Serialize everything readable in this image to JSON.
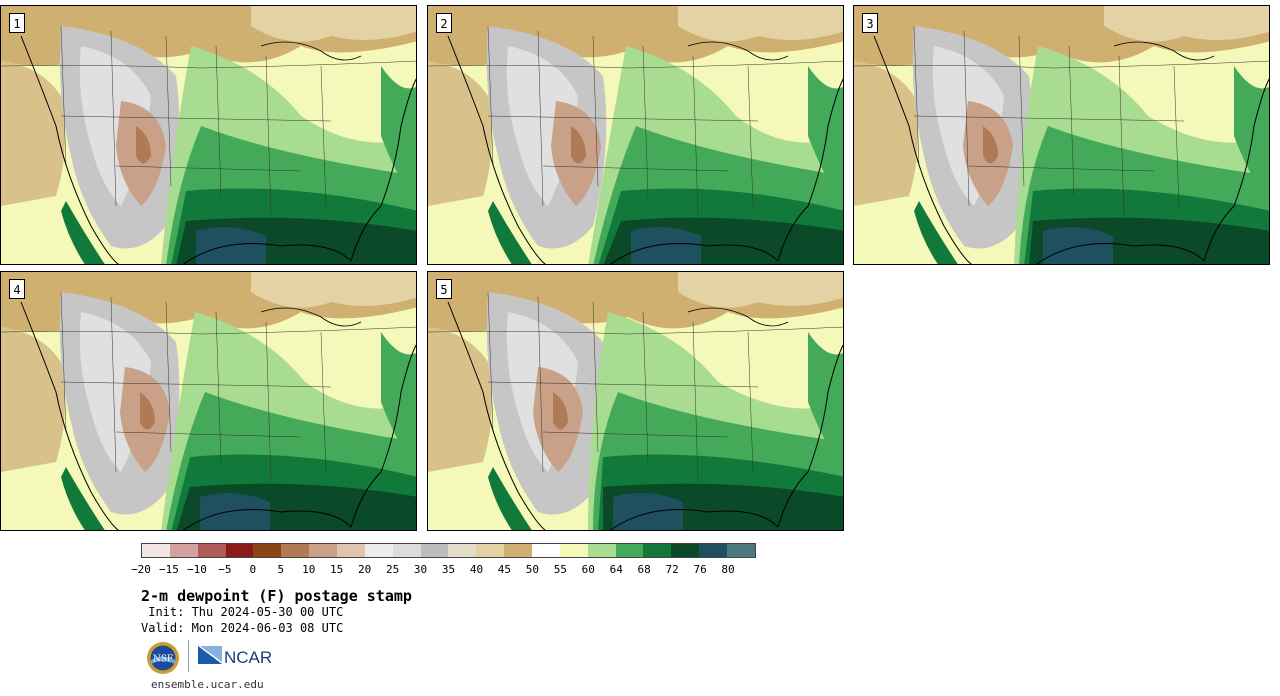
{
  "panels": [
    {
      "id": "1"
    },
    {
      "id": "2"
    },
    {
      "id": "3"
    },
    {
      "id": "4"
    },
    {
      "id": "5"
    }
  ],
  "colorbar": {
    "colors": [
      "#f5e6e6",
      "#d4a0a0",
      "#b05a5a",
      "#8b1a1a",
      "#8b4513",
      "#b07a55",
      "#c9a088",
      "#e0c4b0",
      "#ececec",
      "#dcdcdc",
      "#bdbdbd",
      "#e2dcc8",
      "#e3d2a4",
      "#d0b070",
      "#ffffff",
      "#f4f8b8",
      "#a8dc90",
      "#44aa5a",
      "#117a3a",
      "#0a4a28",
      "#1e5060",
      "#4a7a80"
    ],
    "tick_labels": [
      "−20",
      "−15",
      "−10",
      "−5",
      "0",
      "5",
      "10",
      "15",
      "20",
      "25",
      "30",
      "35",
      "40",
      "45",
      "50",
      "55",
      "60",
      "64",
      "68",
      "72",
      "76",
      "80"
    ]
  },
  "title": "2-m dewpoint (F) postage stamp",
  "init_line": " Init: Thu 2024-05-30 00 UTC",
  "valid_line": "Valid: Mon 2024-06-03 08 UTC",
  "logos": {
    "nsf_text": "NSF",
    "ncar_text": "NCAR"
  },
  "footer": "ensemble.ucar.edu"
}
